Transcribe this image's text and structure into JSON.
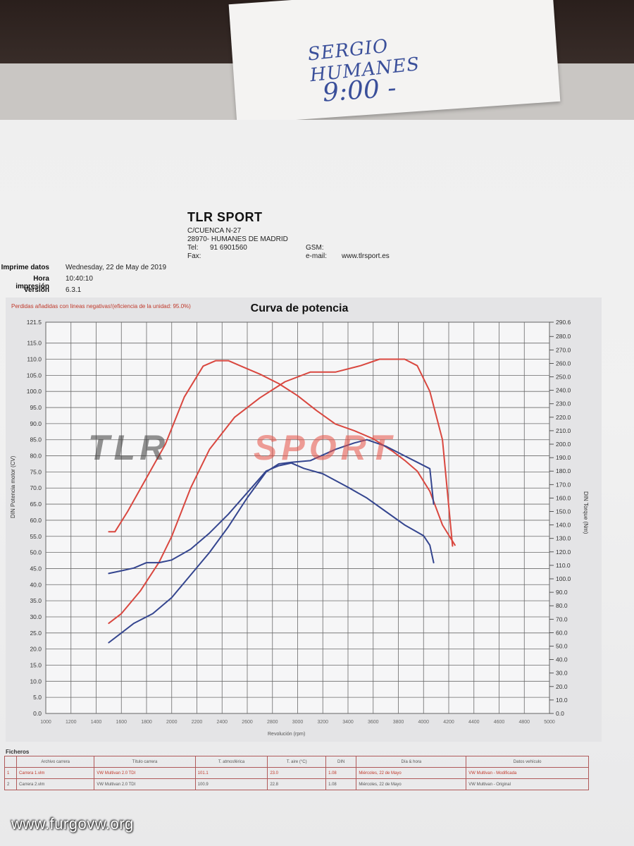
{
  "note": {
    "line1": "SERGIO HUMANES",
    "line2": "9:00 -"
  },
  "header": {
    "company": "TLR SPORT",
    "address1": "C/CUENCA N-27",
    "address2": "28970- HUMANES DE MADRID",
    "tel_label": "Tel:",
    "tel_value": "91 6901560",
    "fax_label": "Fax:",
    "gsm_label": "GSM:",
    "email_label": "e-mail:",
    "email_value": "www.tlrsport.es"
  },
  "meta": {
    "print_date_label": "Imprime datos",
    "print_date_value": "Wednesday, 22 de May de 2019",
    "print_time_label": "Hora impresión",
    "print_time_value": "10:40:10",
    "version_label": "Versión",
    "version_value": "6.3.1"
  },
  "chart_note": "Perdidas añadidas con lineas negativas!(eficiencia de la unidad: 95.0%)",
  "watermark": {
    "left": "TLR",
    "right": "SPORT"
  },
  "chart_data": {
    "type": "line",
    "title": "Curva de potencia",
    "ylabel": "DIN Potencia motor (CV)",
    "y2label": "DIN Torque (Nm)",
    "xlabel": "Revolución (rpm)",
    "xlim": [
      1000,
      5000
    ],
    "ylim": [
      0,
      121.5
    ],
    "y2lim": [
      0,
      290.6
    ],
    "x_ticks": [
      "1000",
      "1200",
      "1400",
      "1600",
      "1800",
      "2000",
      "2200",
      "2400",
      "2600",
      "2800",
      "3000",
      "3200",
      "3400",
      "3600",
      "3800",
      "4000",
      "4200",
      "4400",
      "4600",
      "4800",
      "5000"
    ],
    "y_ticks": [
      "121.5",
      "115.0",
      "110.0",
      "105.0",
      "100.0",
      "95.0",
      "90.0",
      "85.0",
      "80.0",
      "75.0",
      "70.0",
      "65.0",
      "60.0",
      "55.0",
      "50.0",
      "45.0",
      "40.0",
      "35.0",
      "30.0",
      "25.0",
      "20.0",
      "15.0",
      "10.0",
      "5.0",
      "0.0"
    ],
    "y_tick_values": [
      121.5,
      115,
      110,
      105,
      100,
      95,
      90,
      85,
      80,
      75,
      70,
      65,
      60,
      55,
      50,
      45,
      40,
      35,
      30,
      25,
      20,
      15,
      10,
      5,
      0
    ],
    "y2_ticks": [
      "290.6",
      "280.0",
      "270.0",
      "260.0",
      "250.0",
      "240.0",
      "230.0",
      "220.0",
      "210.0",
      "200.0",
      "190.0",
      "180.0",
      "170.0",
      "160.0",
      "150.0",
      "140.0",
      "130.0",
      "120.0",
      "110.0",
      "100.0",
      "90.0",
      "80.0",
      "70.0",
      "60.0",
      "50.0",
      "40.0",
      "30.0",
      "20.0",
      "10.0",
      "0.0"
    ],
    "y2_tick_values": [
      290.6,
      280,
      270,
      260,
      250,
      240,
      230,
      220,
      210,
      200,
      190,
      180,
      170,
      160,
      150,
      140,
      130,
      120,
      110,
      100,
      90,
      80,
      70,
      60,
      50,
      40,
      30,
      20,
      10,
      0
    ],
    "series": [
      {
        "color": "#d9473f",
        "axis": "y2",
        "x": [
          1500,
          1550,
          1650,
          1800,
          1950,
          2100,
          2250,
          2350,
          2450,
          2550,
          2700,
          2850,
          3000,
          3150,
          3300,
          3450,
          3600,
          3750,
          3850,
          3950,
          4050,
          4150,
          4250
        ],
        "y": [
          135,
          135,
          150,
          175,
          200,
          235,
          258,
          262,
          262,
          258,
          252,
          245,
          236,
          225,
          215,
          210,
          204,
          195,
          188,
          180,
          165,
          140,
          125
        ]
      },
      {
        "color": "#d9473f",
        "axis": "y",
        "x": [
          1500,
          1600,
          1750,
          1900,
          2000,
          2150,
          2300,
          2500,
          2700,
          2900,
          3100,
          3300,
          3500,
          3650,
          3750,
          3850,
          3950,
          4050,
          4150,
          4230
        ],
        "y": [
          28,
          31,
          38,
          47,
          55,
          70,
          82,
          92,
          98,
          103,
          106,
          106,
          108,
          110,
          110,
          110,
          108,
          100,
          85,
          52
        ]
      },
      {
        "color": "#34458f",
        "axis": "y2",
        "x": [
          1500,
          1600,
          1700,
          1800,
          1900,
          2000,
          2150,
          2300,
          2450,
          2600,
          2750,
          2850,
          2950,
          3050,
          3200,
          3400,
          3550,
          3700,
          3850,
          4000,
          4050,
          4080
        ],
        "y": [
          104,
          106,
          108,
          112,
          112,
          114,
          122,
          134,
          148,
          164,
          180,
          184,
          186,
          182,
          178,
          168,
          160,
          150,
          140,
          132,
          125,
          112
        ]
      },
      {
        "color": "#34458f",
        "axis": "y",
        "x": [
          1500,
          1600,
          1700,
          1850,
          2000,
          2150,
          2300,
          2450,
          2600,
          2750,
          2850,
          2950,
          3100,
          3300,
          3450,
          3550,
          3700,
          3850,
          3950,
          4050,
          4080
        ],
        "y": [
          22,
          25,
          28,
          31,
          36,
          43,
          50,
          58,
          67,
          75,
          77.5,
          78,
          78.5,
          82,
          84,
          85,
          83,
          80,
          78,
          76,
          65
        ]
      }
    ]
  },
  "table": {
    "title": "Ficheros",
    "headers": [
      "Archivo carrera",
      "Título carrera",
      "T. atmosférica",
      "T. aire (°C)",
      "DIN",
      "Día & hora",
      "Datos vehículo"
    ],
    "rows": [
      [
        "Carrera 1.vlm",
        "VW Multivan 2.0 TDI",
        "101.1",
        "23.0",
        "1.08",
        "Miércoles, 22 de Mayo",
        "VW Multivan - Modificada"
      ],
      [
        "Carrera 2.vlm",
        "VW Multivan 2.0 TDI",
        "100.9",
        "22.8",
        "1.08",
        "Miércoles, 22 de Mayo",
        "VW Multivan - Original"
      ]
    ]
  },
  "footer": {
    "site": "www.furgovw.org"
  }
}
